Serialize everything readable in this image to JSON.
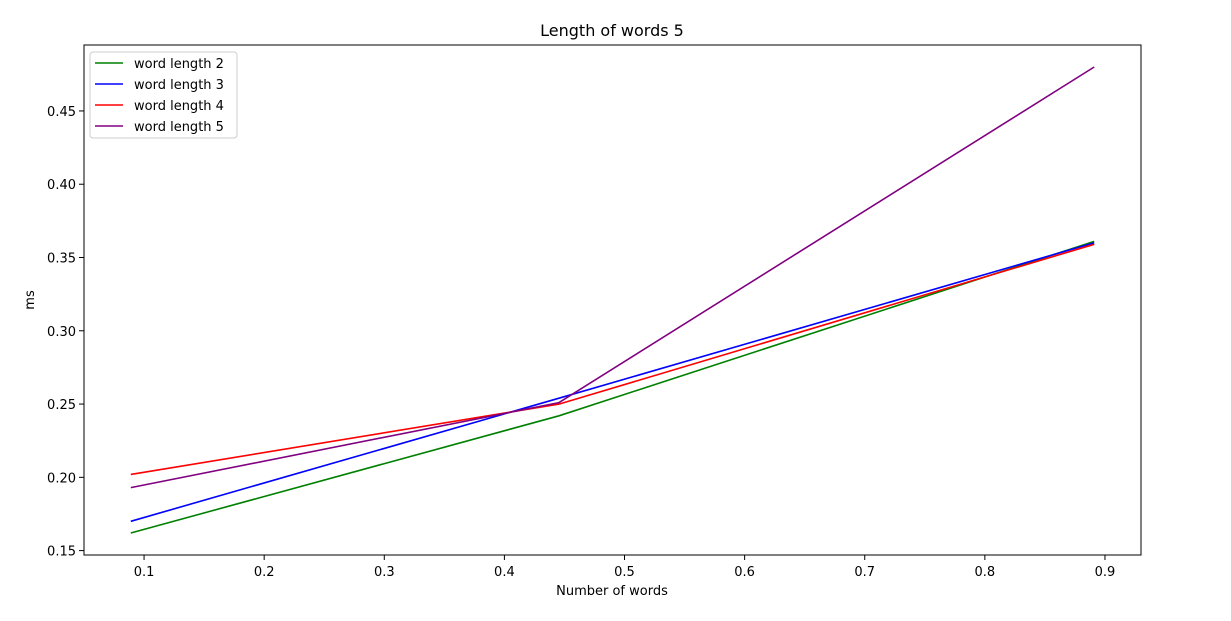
{
  "chart_data": {
    "type": "line",
    "title": "Length of words 5",
    "xlabel": "Number of words",
    "ylabel": "ms",
    "xlim": [
      0.05,
      0.93
    ],
    "ylim": [
      0.147,
      0.495
    ],
    "xticks": [
      0.1,
      0.2,
      0.3,
      0.4,
      0.5,
      0.6,
      0.7,
      0.8,
      0.9
    ],
    "xtick_labels": [
      "0.1",
      "0.2",
      "0.3",
      "0.4",
      "0.5",
      "0.6",
      "0.7",
      "0.8",
      "0.9"
    ],
    "yticks": [
      0.15,
      0.2,
      0.25,
      0.3,
      0.35,
      0.4,
      0.45
    ],
    "ytick_labels": [
      "0.15",
      "0.20",
      "0.25",
      "0.30",
      "0.35",
      "0.40",
      "0.45"
    ],
    "x": [
      0.089,
      0.4455,
      0.891
    ],
    "series": [
      {
        "name": "word length 2",
        "color": "#008000",
        "values": [
          0.162,
          0.242,
          0.361
        ]
      },
      {
        "name": "word length 3",
        "color": "#0000ff",
        "values": [
          0.17,
          0.254,
          0.36
        ]
      },
      {
        "name": "word length 4",
        "color": "#ff0000",
        "values": [
          0.202,
          0.25,
          0.359
        ]
      },
      {
        "name": "word length 5",
        "color": "#800080",
        "values": [
          0.193,
          0.251,
          0.48
        ]
      }
    ],
    "grid": false,
    "legend_position": "upper-left"
  }
}
